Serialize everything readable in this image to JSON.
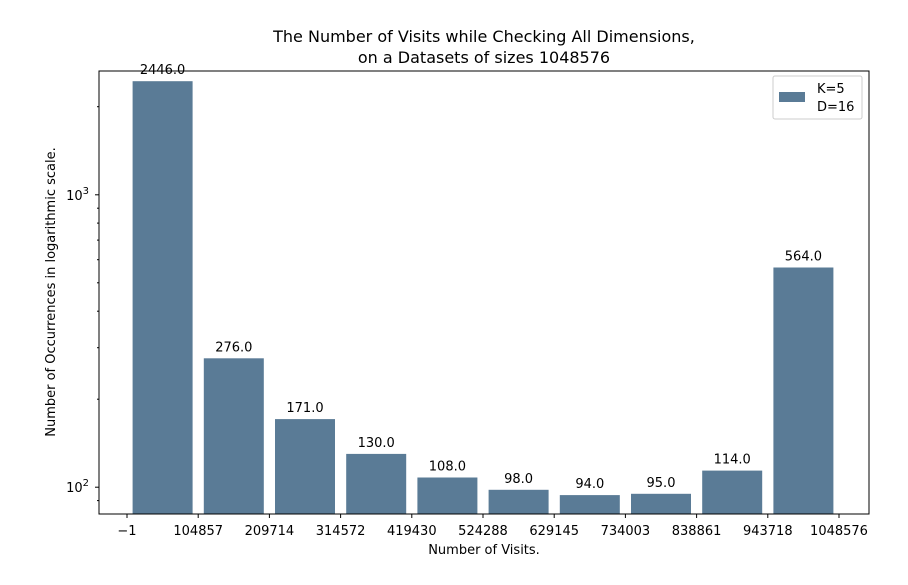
{
  "chart_data": {
    "type": "bar",
    "title_lines": [
      "The Number of Visits while Checking All Dimensions,",
      "on a Datasets of sizes 1048576"
    ],
    "xlabel": "Number of Visits.",
    "ylabel": "Number of Occurrences in logarithmic scale.",
    "y_scale": "log",
    "ylim": [
      81,
      2650
    ],
    "x_ticks": [
      "−1",
      "104857",
      "209714",
      "314572",
      "419430",
      "524288",
      "629145",
      "734003",
      "838861",
      "943718",
      "1048576"
    ],
    "y_ticks": [
      {
        "value": 100,
        "base": "10",
        "exp": "2"
      },
      {
        "value": 1000,
        "base": "10",
        "exp": "3"
      }
    ],
    "values": [
      2446.0,
      276.0,
      171.0,
      130.0,
      108.0,
      98.0,
      94.0,
      95.0,
      114.0,
      564.0
    ],
    "data_labels": [
      "2446.0",
      "276.0",
      "171.0",
      "130.0",
      "108.0",
      "98.0",
      "94.0",
      "95.0",
      "114.0",
      "564.0"
    ],
    "bar_color": "#5a7b96",
    "legend": {
      "placement": "top-right",
      "entries": [
        "K=5",
        "D=16"
      ]
    },
    "grid": false
  }
}
